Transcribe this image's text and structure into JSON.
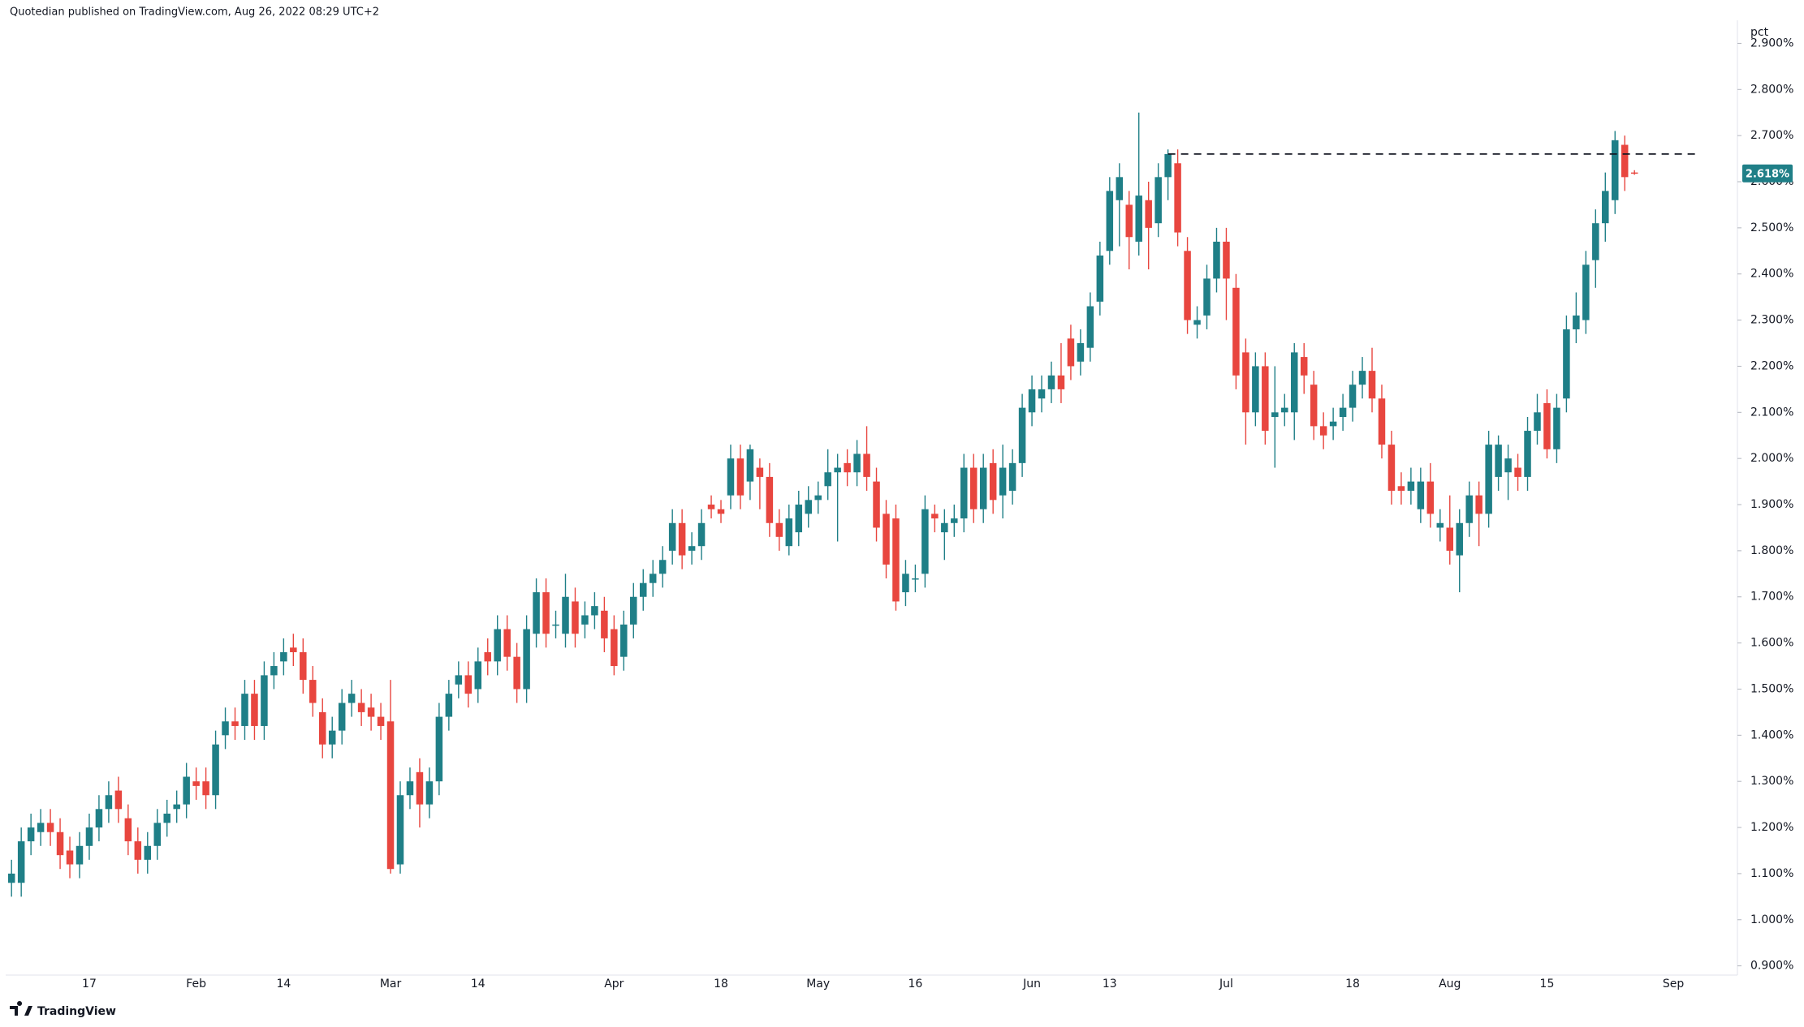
{
  "header": "Quotedian published on TradingView.com, Aug 26, 2022 08:29 UTC+2",
  "footer": "TradingView",
  "chart_data": {
    "type": "candlestick",
    "y_unit": "pct",
    "up_color": "#1f7f87",
    "down_color": "#e8463f",
    "categories": [
      null,
      null,
      null,
      null,
      null,
      null,
      null,
      null,
      "17",
      null,
      null,
      null,
      null,
      null,
      null,
      null,
      null,
      null,
      null,
      "Feb",
      null,
      null,
      null,
      null,
      null,
      null,
      null,
      null,
      "14",
      null,
      null,
      null,
      null,
      null,
      null,
      null,
      null,
      null,
      null,
      "Mar",
      null,
      null,
      null,
      null,
      null,
      null,
      null,
      null,
      "14",
      null,
      null,
      null,
      null,
      null,
      null,
      null,
      null,
      null,
      null,
      null,
      null,
      null,
      "Apr",
      null,
      null,
      null,
      null,
      null,
      null,
      null,
      null,
      null,
      null,
      "18",
      null,
      null,
      null,
      null,
      null,
      null,
      null,
      null,
      null,
      "May",
      null,
      null,
      null,
      null,
      null,
      null,
      null,
      null,
      null,
      "16",
      null,
      null,
      null,
      null,
      null,
      null,
      null,
      null,
      null,
      null,
      null,
      "Jun",
      null,
      null,
      null,
      null,
      null,
      null,
      null,
      "13",
      null,
      null,
      null,
      null,
      null,
      null,
      null,
      null,
      null,
      null,
      null,
      "Jul",
      null,
      null,
      null,
      null,
      null,
      null,
      null,
      null,
      null,
      null,
      null,
      null,
      "18",
      null,
      null,
      null,
      null,
      null,
      null,
      null,
      null,
      null,
      "Aug",
      null,
      null,
      null,
      null,
      null,
      null,
      null,
      null,
      null,
      "15",
      null,
      null,
      null,
      null,
      null,
      null,
      null,
      null,
      null,
      null,
      null,
      null,
      "Sep"
    ],
    "open": [
      1.08,
      1.08,
      1.17,
      1.19,
      1.21,
      1.19,
      1.15,
      1.12,
      1.16,
      1.2,
      1.24,
      1.28,
      1.22,
      1.17,
      1.13,
      1.16,
      1.21,
      1.24,
      1.25,
      1.3,
      1.3,
      1.27,
      1.4,
      1.43,
      1.42,
      1.49,
      1.42,
      1.53,
      1.56,
      1.59,
      1.58,
      1.52,
      1.45,
      1.38,
      1.41,
      1.47,
      1.47,
      1.46,
      1.44,
      1.43,
      1.12,
      1.27,
      1.32,
      1.25,
      1.3,
      1.44,
      1.51,
      1.53,
      1.5,
      1.58,
      1.56,
      1.63,
      1.57,
      1.5,
      1.62,
      1.71,
      1.64,
      1.62,
      1.69,
      1.64,
      1.66,
      1.67,
      1.63,
      1.57,
      1.64,
      1.7,
      1.73,
      1.75,
      1.8,
      1.86,
      1.8,
      1.81,
      1.9,
      1.89,
      1.92,
      2.0,
      1.95,
      1.98,
      1.96,
      1.86,
      1.81,
      1.84,
      1.88,
      1.91,
      1.94,
      1.97,
      1.99,
      1.97,
      2.01,
      1.95,
      1.88,
      1.87,
      1.71,
      1.74,
      1.75,
      1.88,
      1.84,
      1.86,
      1.87,
      1.98,
      1.89,
      1.99,
      1.92,
      1.93,
      1.99,
      2.1,
      2.13,
      2.15,
      2.18,
      2.26,
      2.21,
      2.24,
      2.34,
      2.45,
      2.56,
      2.55,
      2.47,
      2.56,
      2.51,
      2.61,
      2.64,
      2.45,
      2.29,
      2.31,
      2.39,
      2.47,
      2.37,
      2.23,
      2.1,
      2.2,
      2.09,
      2.1,
      2.1,
      2.22,
      2.16,
      2.07,
      2.07,
      2.09,
      2.11,
      2.16,
      2.19,
      2.13,
      2.03,
      1.94,
      1.93,
      1.89,
      1.95,
      1.85,
      1.85,
      1.79,
      1.86,
      1.92,
      1.88,
      1.96,
      1.97,
      1.98,
      1.96,
      2.06,
      2.12,
      2.02,
      2.13,
      2.28,
      2.3,
      2.43,
      2.51,
      2.56,
      2.68,
      2.62,
      null,
      null,
      null,
      null
    ],
    "high": [
      1.13,
      1.2,
      1.23,
      1.24,
      1.24,
      1.22,
      1.18,
      1.19,
      1.23,
      1.27,
      1.3,
      1.31,
      1.25,
      1.2,
      1.19,
      1.24,
      1.26,
      1.28,
      1.34,
      1.33,
      1.33,
      1.41,
      1.46,
      1.46,
      1.52,
      1.52,
      1.56,
      1.58,
      1.61,
      1.62,
      1.61,
      1.55,
      1.48,
      1.44,
      1.5,
      1.52,
      1.5,
      1.49,
      1.47,
      1.52,
      1.3,
      1.33,
      1.35,
      1.33,
      1.47,
      1.52,
      1.56,
      1.56,
      1.59,
      1.61,
      1.66,
      1.66,
      1.6,
      1.66,
      1.74,
      1.74,
      1.67,
      1.75,
      1.72,
      1.69,
      1.71,
      1.7,
      1.66,
      1.67,
      1.73,
      1.76,
      1.78,
      1.81,
      1.89,
      1.89,
      1.84,
      1.89,
      1.92,
      1.91,
      2.03,
      2.03,
      2.03,
      2.0,
      1.99,
      1.89,
      1.9,
      1.93,
      1.94,
      1.95,
      2.02,
      2.01,
      2.02,
      2.04,
      2.07,
      1.98,
      1.91,
      1.9,
      1.78,
      1.77,
      1.92,
      1.9,
      1.89,
      1.9,
      2.01,
      2.01,
      2.01,
      2.02,
      2.03,
      2.02,
      2.14,
      2.18,
      2.18,
      2.21,
      2.25,
      2.29,
      2.28,
      2.36,
      2.47,
      2.61,
      2.64,
      2.58,
      2.75,
      2.6,
      2.64,
      2.67,
      2.67,
      2.48,
      2.33,
      2.42,
      2.5,
      2.5,
      2.4,
      2.26,
      2.23,
      2.23,
      2.2,
      2.14,
      2.25,
      2.25,
      2.19,
      2.1,
      2.11,
      2.14,
      2.19,
      2.22,
      2.24,
      2.16,
      2.06,
      1.97,
      1.98,
      1.98,
      1.99,
      1.89,
      1.92,
      1.89,
      1.95,
      1.95,
      2.06,
      2.05,
      2.03,
      2.01,
      2.09,
      2.14,
      2.15,
      2.14,
      2.31,
      2.36,
      2.45,
      2.54,
      2.62,
      2.71,
      2.7,
      2.625,
      null,
      null,
      null,
      null
    ],
    "low": [
      1.05,
      1.05,
      1.14,
      1.16,
      1.16,
      1.11,
      1.09,
      1.09,
      1.13,
      1.17,
      1.21,
      1.21,
      1.14,
      1.1,
      1.1,
      1.13,
      1.18,
      1.21,
      1.22,
      1.26,
      1.24,
      1.24,
      1.37,
      1.39,
      1.39,
      1.39,
      1.39,
      1.5,
      1.53,
      1.55,
      1.49,
      1.44,
      1.35,
      1.35,
      1.38,
      1.44,
      1.42,
      1.41,
      1.39,
      1.1,
      1.1,
      1.24,
      1.2,
      1.22,
      1.27,
      1.41,
      1.48,
      1.46,
      1.47,
      1.53,
      1.53,
      1.54,
      1.47,
      1.47,
      1.59,
      1.59,
      1.61,
      1.59,
      1.59,
      1.61,
      1.63,
      1.58,
      1.53,
      1.54,
      1.61,
      1.67,
      1.7,
      1.72,
      1.77,
      1.76,
      1.77,
      1.78,
      1.87,
      1.86,
      1.89,
      1.89,
      1.91,
      1.89,
      1.83,
      1.8,
      1.79,
      1.81,
      1.85,
      1.88,
      1.91,
      1.82,
      1.94,
      1.94,
      1.93,
      1.82,
      1.74,
      1.67,
      1.68,
      1.71,
      1.72,
      1.84,
      1.78,
      1.83,
      1.84,
      1.86,
      1.86,
      1.88,
      1.87,
      1.9,
      1.96,
      2.07,
      2.1,
      2.12,
      2.12,
      2.17,
      2.18,
      2.21,
      2.31,
      2.42,
      2.46,
      2.41,
      2.44,
      2.41,
      2.48,
      2.56,
      2.46,
      2.27,
      2.26,
      2.28,
      2.36,
      2.3,
      2.15,
      2.03,
      2.07,
      2.03,
      1.98,
      2.07,
      2.04,
      2.14,
      2.04,
      2.02,
      2.04,
      2.06,
      2.08,
      2.13,
      2.1,
      2.0,
      1.9,
      1.9,
      1.9,
      1.86,
      1.85,
      1.82,
      1.77,
      1.71,
      1.83,
      1.81,
      1.85,
      1.93,
      1.91,
      1.93,
      1.93,
      2.03,
      2.0,
      1.99,
      2.1,
      2.25,
      2.27,
      2.37,
      2.47,
      2.53,
      2.58,
      2.615,
      null,
      null,
      null,
      null
    ],
    "close": [
      1.1,
      1.17,
      1.2,
      1.21,
      1.19,
      1.14,
      1.12,
      1.16,
      1.2,
      1.24,
      1.27,
      1.24,
      1.17,
      1.13,
      1.16,
      1.21,
      1.23,
      1.25,
      1.31,
      1.29,
      1.27,
      1.38,
      1.43,
      1.42,
      1.49,
      1.42,
      1.53,
      1.55,
      1.58,
      1.58,
      1.52,
      1.47,
      1.38,
      1.41,
      1.47,
      1.49,
      1.45,
      1.44,
      1.42,
      1.11,
      1.27,
      1.3,
      1.25,
      1.3,
      1.44,
      1.49,
      1.53,
      1.49,
      1.56,
      1.56,
      1.63,
      1.57,
      1.5,
      1.63,
      1.71,
      1.62,
      1.64,
      1.7,
      1.62,
      1.66,
      1.68,
      1.61,
      1.55,
      1.64,
      1.7,
      1.73,
      1.75,
      1.78,
      1.86,
      1.79,
      1.81,
      1.86,
      1.89,
      1.88,
      2.0,
      1.92,
      2.02,
      1.96,
      1.86,
      1.83,
      1.87,
      1.9,
      1.91,
      1.92,
      1.97,
      1.98,
      1.97,
      2.01,
      1.96,
      1.85,
      1.77,
      1.69,
      1.75,
      1.74,
      1.89,
      1.87,
      1.86,
      1.87,
      1.98,
      1.89,
      1.98,
      1.91,
      1.98,
      1.99,
      2.11,
      2.15,
      2.15,
      2.18,
      2.15,
      2.2,
      2.25,
      2.33,
      2.44,
      2.58,
      2.61,
      2.48,
      2.57,
      2.5,
      2.61,
      2.66,
      2.49,
      2.3,
      2.3,
      2.39,
      2.47,
      2.39,
      2.18,
      2.1,
      2.2,
      2.06,
      2.1,
      2.11,
      2.23,
      2.18,
      2.07,
      2.05,
      2.08,
      2.11,
      2.16,
      2.19,
      2.13,
      2.03,
      1.93,
      1.93,
      1.95,
      1.95,
      1.88,
      1.86,
      1.8,
      1.86,
      1.92,
      1.88,
      2.03,
      2.03,
      2.0,
      1.96,
      2.06,
      2.1,
      2.02,
      2.11,
      2.28,
      2.31,
      2.42,
      2.51,
      2.58,
      2.69,
      2.61,
      2.618,
      null,
      null,
      null,
      null
    ],
    "ylim": [
      0.88,
      2.95
    ],
    "yticks": [
      {
        "value": 0.9,
        "label": "0.900%"
      },
      {
        "value": 1.0,
        "label": "1.000%"
      },
      {
        "value": 1.1,
        "label": "1.100%"
      },
      {
        "value": 1.2,
        "label": "1.200%"
      },
      {
        "value": 1.3,
        "label": "1.300%"
      },
      {
        "value": 1.4,
        "label": "1.400%"
      },
      {
        "value": 1.5,
        "label": "1.500%"
      },
      {
        "value": 1.6,
        "label": "1.600%"
      },
      {
        "value": 1.7,
        "label": "1.700%"
      },
      {
        "value": 1.8,
        "label": "1.800%"
      },
      {
        "value": 1.9,
        "label": "1.900%"
      },
      {
        "value": 2.0,
        "label": "2.000%"
      },
      {
        "value": 2.1,
        "label": "2.100%"
      },
      {
        "value": 2.2,
        "label": "2.200%"
      },
      {
        "value": 2.3,
        "label": "2.300%"
      },
      {
        "value": 2.4,
        "label": "2.400%"
      },
      {
        "value": 2.5,
        "label": "2.500%"
      },
      {
        "value": 2.6,
        "label": "2.600%"
      },
      {
        "value": 2.7,
        "label": "2.700%"
      },
      {
        "value": 2.8,
        "label": "2.800%"
      },
      {
        "value": 2.9,
        "label": "2.900%"
      }
    ],
    "last_price": {
      "value": 2.618,
      "label": "2.618%"
    },
    "level": {
      "value": 2.66,
      "from": 119
    },
    "grid": false
  }
}
